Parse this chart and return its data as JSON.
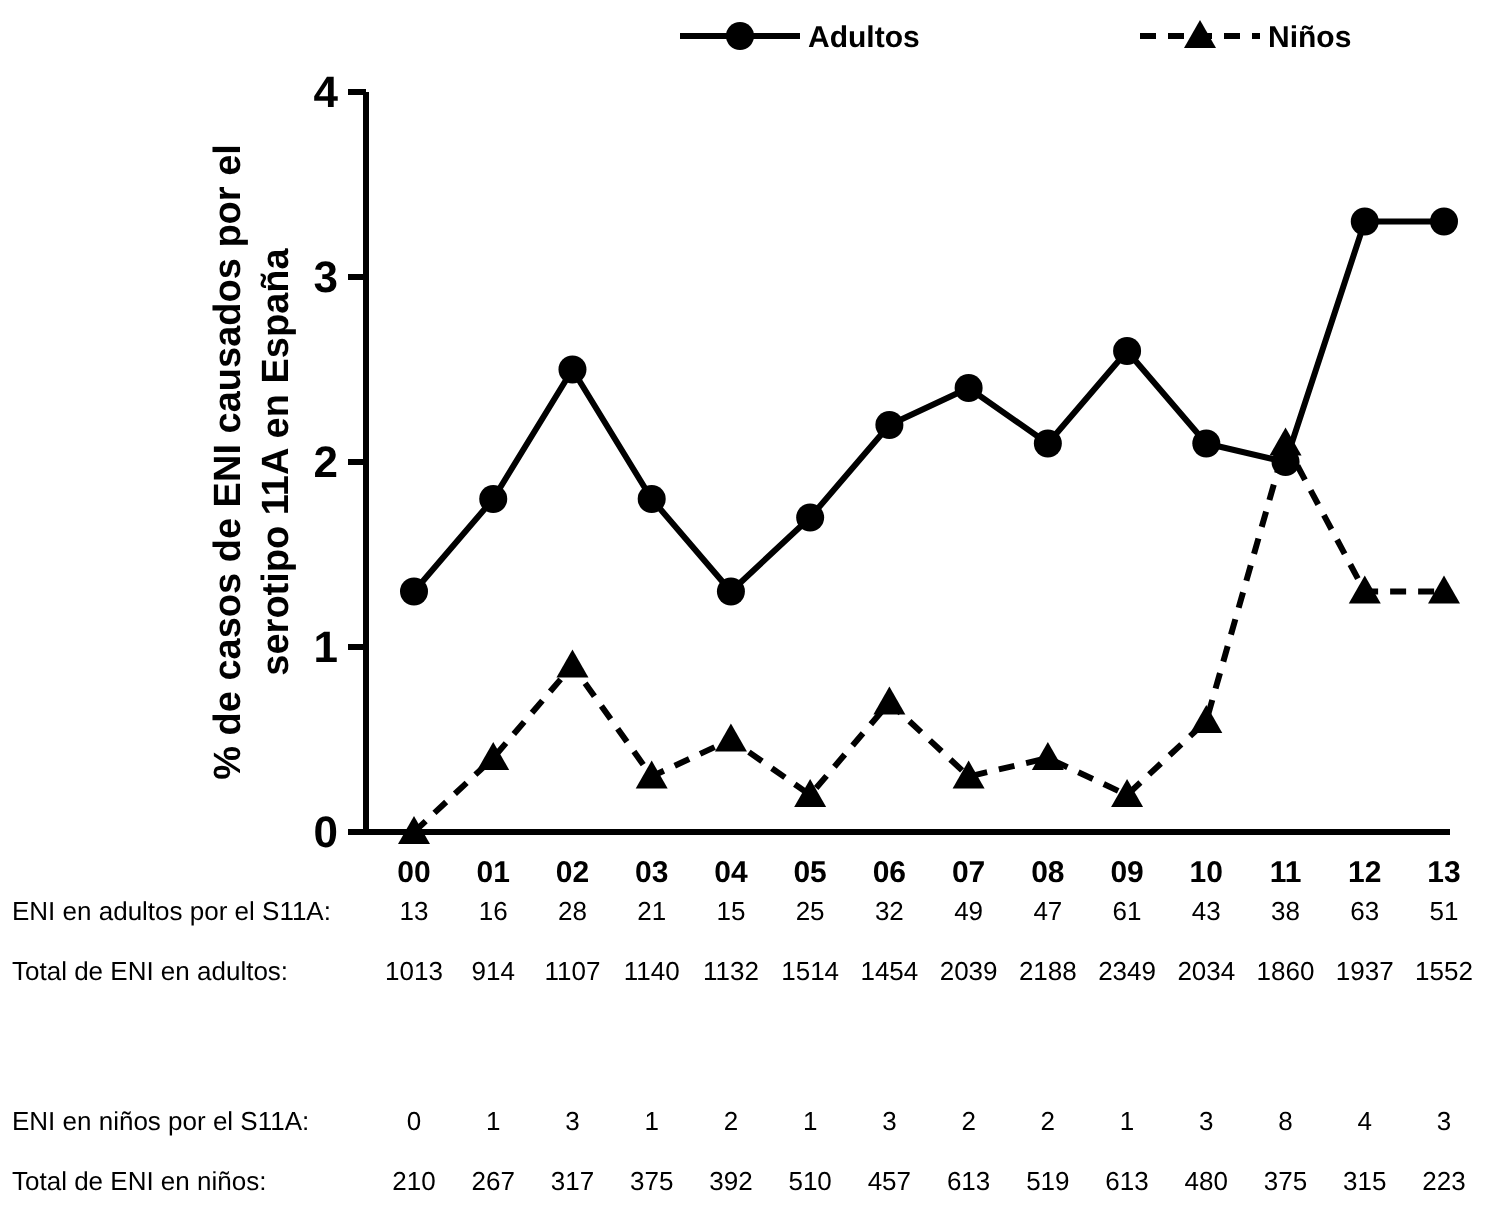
{
  "chart_data": {
    "type": "line",
    "ylabel": "% de casos de ENI causados por el serotipo  11A en España",
    "categories": [
      "00",
      "01",
      "02",
      "03",
      "04",
      "05",
      "06",
      "07",
      "08",
      "09",
      "10",
      "11",
      "12",
      "13"
    ],
    "ylim": [
      0,
      4
    ],
    "yticks": [
      0,
      1,
      2,
      3,
      4
    ],
    "grid": false,
    "legend": "top",
    "series": [
      {
        "name": "Adultos",
        "color": "#000000",
        "marker": "circle",
        "line_style": "solid",
        "values": [
          1.3,
          1.8,
          2.5,
          1.8,
          1.3,
          1.7,
          2.2,
          2.4,
          2.1,
          2.6,
          2.1,
          2.0,
          3.3,
          3.3
        ]
      },
      {
        "name": "Niños",
        "color": "#000000",
        "marker": "triangle",
        "line_style": "dashed",
        "values": [
          0,
          0.4,
          0.9,
          0.3,
          0.5,
          0.2,
          0.7,
          0.3,
          0.4,
          0.2,
          0.6,
          2.1,
          1.3,
          1.3
        ]
      }
    ],
    "annotations": [
      "ENI en adultos por el S11A:",
      "13",
      "16",
      "28",
      "21",
      "15",
      "25",
      "32",
      "49",
      "47",
      "61",
      "43",
      "38",
      "63",
      "51",
      "Total de ENI en adultos:",
      "1013",
      "914",
      "1107",
      "1140",
      "1132",
      "1514",
      "1454",
      "2039",
      "2188",
      "2349",
      "2034",
      "1860",
      "1937",
      "1552",
      "ENI en niños por el S11A:",
      "0",
      "1",
      "3",
      "1",
      "2",
      "1",
      "3",
      "2",
      "2",
      "1",
      "3",
      "8",
      "4",
      "3",
      "Total de ENI en niños:",
      "210",
      "267",
      "317",
      "375",
      "392",
      "510",
      "457",
      "613",
      "519",
      "613",
      "480",
      "375",
      "315",
      "223"
    ]
  }
}
